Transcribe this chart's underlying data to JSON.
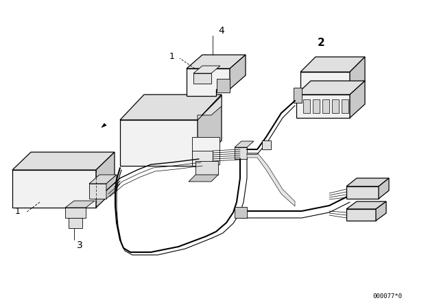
{
  "background_color": "#ffffff",
  "line_color": "#000000",
  "label_2": "2",
  "label_3": "3",
  "label_4": "4",
  "label_1a": "1",
  "label_1b": "1",
  "part_number": "000077*0",
  "figsize": [
    6.4,
    4.48
  ],
  "dpi": 100,
  "xlim": [
    0,
    640
  ],
  "ylim": [
    0,
    448
  ],
  "gray_light": "#f2f2f2",
  "gray_mid": "#e0e0e0",
  "gray_dark": "#c8c8c8",
  "gray_darker": "#b0b0b0"
}
